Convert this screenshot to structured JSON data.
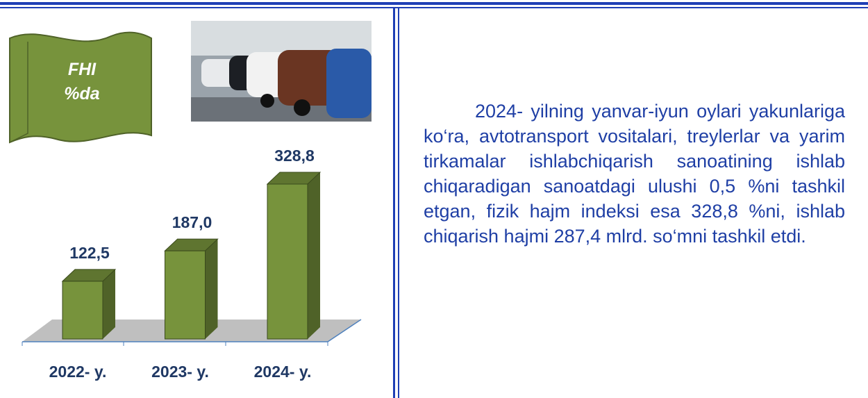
{
  "badge": {
    "lines": [
      "FHI",
      "%da"
    ]
  },
  "chart_data": {
    "type": "bar3d",
    "categories": [
      "2022- y.",
      "2023- y.",
      "2024- y."
    ],
    "values": [
      122.5,
      187.0,
      328.8
    ],
    "value_labels": [
      "122,5",
      "187,0",
      "328,8"
    ],
    "color": "#77933c"
  },
  "text": "2024- yilning yanvar-iyun oylari yakunlariga ko‘ra, avtotransport vositalari, treylerlar va yarim tirkamalar ishlabchiqarish sanoatining ishlab chiqaradigan sanoatdagi ulushi 0,5 %ni tashkil etgan, fizik hajm indeksi esa 328,8 %ni, ishlab chiqarish hajmi 287,4 mlrd. so‘mni tashkil etdi."
}
